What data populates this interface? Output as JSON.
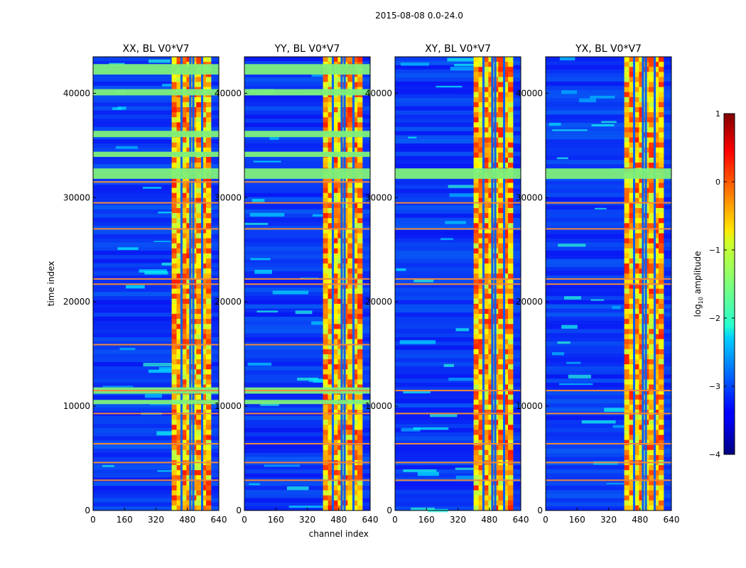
{
  "figure_title": "2015-08-08 0.0-24.0",
  "colors": {
    "background_low": "#0a1fd6",
    "band_mid": "#f2f21c",
    "flag_line": "#f08a3c",
    "stripe": "#7ef07a"
  },
  "chart_data": [
    {
      "type": "heatmap",
      "title": "XX, BL V0*V7",
      "xlabel": "",
      "ylabel": "time index",
      "xlim": [
        0,
        640
      ],
      "ylim": [
        0,
        43500
      ],
      "xticks": [
        0,
        160,
        320,
        480,
        640
      ],
      "yticks": [
        0,
        10000,
        20000,
        30000,
        40000
      ],
      "xtick_labels": [
        "0",
        "160",
        "320",
        "480",
        "640"
      ],
      "ytick_labels": [
        "0",
        "10000",
        "20000",
        "30000",
        "40000"
      ],
      "active_band": [
        400,
        600
      ],
      "band_dividers": [
        450,
        495,
        510,
        555
      ],
      "flag_rows": [
        2900,
        4600,
        6400,
        9300,
        11500,
        15900,
        21700,
        22200,
        27000,
        29500,
        31500
      ],
      "wide_stripes": [
        [
          41800,
          42800
        ],
        [
          39800,
          40400
        ],
        [
          35800,
          36400
        ],
        [
          33900,
          34400
        ],
        [
          31800,
          32800
        ],
        [
          11200,
          11800
        ],
        [
          10200,
          10600
        ]
      ]
    },
    {
      "type": "heatmap",
      "title": "YY, BL V0*V7",
      "xlabel": "channel index",
      "ylabel": "",
      "xlim": [
        0,
        640
      ],
      "ylim": [
        0,
        43500
      ],
      "xticks": [
        0,
        160,
        320,
        480,
        640
      ],
      "yticks": [
        0,
        10000,
        20000,
        30000,
        40000
      ],
      "xtick_labels": [
        "0",
        "160",
        "320",
        "480",
        "640"
      ],
      "ytick_labels": [
        "0",
        "10000",
        "20000",
        "30000",
        "40000"
      ],
      "active_band": [
        400,
        600
      ],
      "band_dividers": [
        450,
        495,
        510,
        555
      ],
      "flag_rows": [
        2900,
        4600,
        6400,
        9300,
        11500,
        15900,
        21700,
        22200,
        27000,
        29500,
        31500
      ],
      "wide_stripes": [
        [
          41800,
          42800
        ],
        [
          39800,
          40400
        ],
        [
          35800,
          36400
        ],
        [
          33900,
          34400
        ],
        [
          31800,
          32800
        ],
        [
          11200,
          11800
        ],
        [
          10200,
          10600
        ]
      ]
    },
    {
      "type": "heatmap",
      "title": "XY, BL V0*V7",
      "xlabel": "",
      "ylabel": "",
      "xlim": [
        0,
        640
      ],
      "ylim": [
        0,
        43500
      ],
      "xticks": [
        0,
        160,
        320,
        480,
        640
      ],
      "yticks": [
        0,
        10000,
        20000,
        30000,
        40000
      ],
      "xtick_labels": [
        "0",
        "160",
        "320",
        "480",
        "640"
      ],
      "ytick_labels": [
        "0",
        "10000",
        "20000",
        "30000",
        "40000"
      ],
      "active_band": [
        400,
        600
      ],
      "band_dividers": [
        450,
        495,
        510,
        555
      ],
      "flag_rows": [
        2900,
        4600,
        6400,
        9300,
        11500,
        21700,
        22200,
        27000,
        29500
      ],
      "wide_stripes": [
        [
          31800,
          32800
        ]
      ]
    },
    {
      "type": "heatmap",
      "title": "YX, BL V0*V7",
      "xlabel": "",
      "ylabel": "",
      "xlim": [
        0,
        640
      ],
      "ylim": [
        0,
        43500
      ],
      "xticks": [
        0,
        160,
        320,
        480,
        640
      ],
      "yticks": [
        0,
        10000,
        20000,
        30000,
        40000
      ],
      "xtick_labels": [
        "0",
        "160",
        "320",
        "480",
        "640"
      ],
      "ytick_labels": [
        "0",
        "10000",
        "20000",
        "30000",
        "40000"
      ],
      "active_band": [
        400,
        600
      ],
      "band_dividers": [
        450,
        495,
        510,
        555
      ],
      "flag_rows": [
        2900,
        4600,
        6400,
        9300,
        11500,
        21700,
        22200,
        27000,
        29500
      ],
      "wide_stripes": [
        [
          31800,
          32800
        ]
      ]
    }
  ],
  "colorbar": {
    "label": "log10 amplitude",
    "label_base": "log",
    "label_sub": "10",
    "label_rest": " amplitude",
    "min": -4,
    "max": 1,
    "ticks": [
      1,
      0,
      -1,
      -2,
      -3,
      -4
    ],
    "tick_labels": [
      "1",
      "0",
      "−1",
      "−2",
      "−3",
      "−4"
    ],
    "colormap": "jet"
  }
}
